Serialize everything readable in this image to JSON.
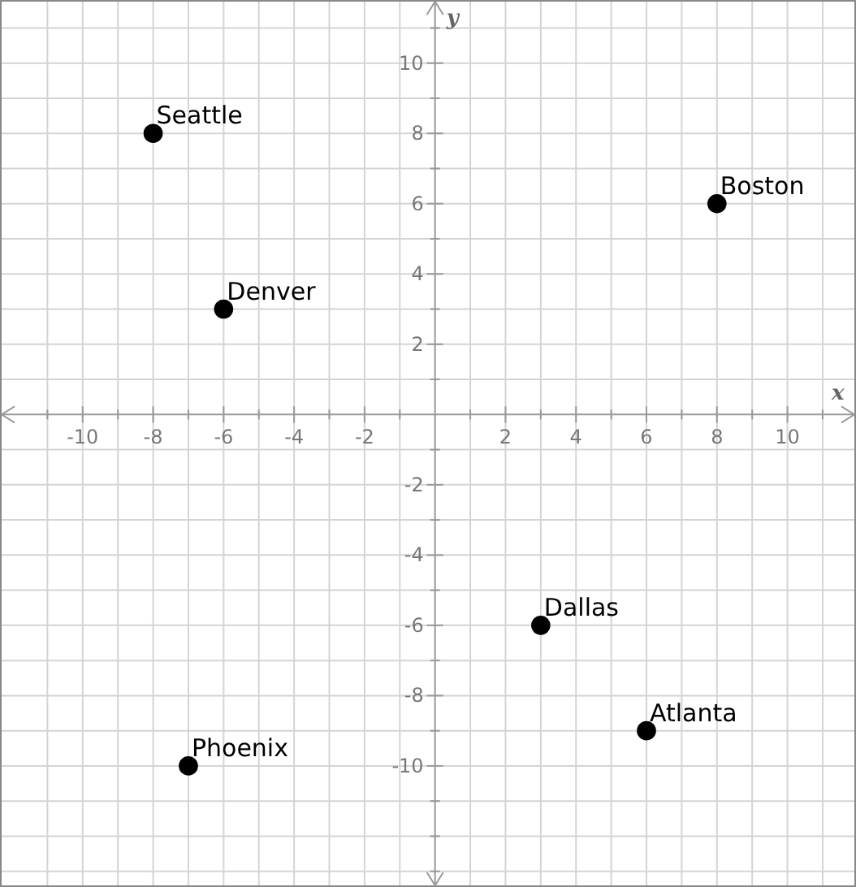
{
  "chart_data": {
    "type": "scatter",
    "xlabel": "x",
    "ylabel": "y",
    "xlim": [
      -12.3,
      11.9
    ],
    "ylim": [
      -13.4,
      11.75
    ],
    "xticks": [
      {
        "value": -11,
        "label": null
      },
      -10,
      {
        "value": -9,
        "label": null
      },
      -8,
      {
        "value": -7,
        "label": null
      },
      -6,
      {
        "value": -5,
        "label": null
      },
      -4,
      {
        "value": -3,
        "label": null
      },
      -2,
      {
        "value": -1,
        "label": null
      },
      {
        "value": 1,
        "label": null
      },
      2,
      {
        "value": 3,
        "label": null
      },
      4,
      {
        "value": 5,
        "label": null
      },
      6,
      {
        "value": 7,
        "label": null
      },
      8,
      {
        "value": 9,
        "label": null
      },
      10,
      {
        "value": 11,
        "label": null
      }
    ],
    "yticks": [
      {
        "value": -13,
        "label": null
      },
      {
        "value": -12,
        "label": null
      },
      {
        "value": -11,
        "label": null
      },
      -10,
      {
        "value": -9,
        "label": null
      },
      -8,
      {
        "value": -7,
        "label": null
      },
      -6,
      {
        "value": -5,
        "label": null
      },
      -4,
      {
        "value": -3,
        "label": null
      },
      -2,
      {
        "value": -1,
        "label": null
      },
      {
        "value": 1,
        "label": null
      },
      2,
      {
        "value": 3,
        "label": null
      },
      4,
      {
        "value": 5,
        "label": null
      },
      6,
      {
        "value": 7,
        "label": null
      },
      8,
      {
        "value": 9,
        "label": null
      },
      10,
      {
        "value": 11,
        "label": null
      }
    ],
    "grid": true,
    "marker": "circle",
    "series": [
      {
        "color": "#000000",
        "x": [
          -8,
          8,
          -6,
          3,
          6,
          -7
        ],
        "values": [
          8,
          6,
          3,
          -6,
          -9,
          -10
        ]
      }
    ],
    "annotations": [
      {
        "text": "Seattle",
        "x": -8,
        "y": 8
      },
      {
        "text": "Boston",
        "x": 8,
        "y": 6
      },
      {
        "text": "Denver",
        "x": -6,
        "y": 3
      },
      {
        "text": "Dallas",
        "x": 3,
        "y": -6
      },
      {
        "text": "Atlanta",
        "x": 6,
        "y": -9
      },
      {
        "text": "Phoenix",
        "x": -7,
        "y": -10
      }
    ]
  }
}
